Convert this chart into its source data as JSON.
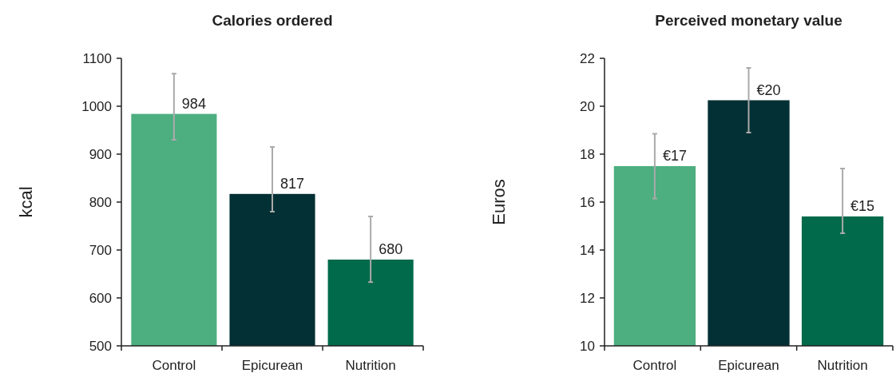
{
  "chart_data": [
    {
      "type": "bar",
      "title": "Calories ordered",
      "ylabel": "kcal",
      "categories": [
        "Control",
        "Epicurean",
        "Nutrition"
      ],
      "values": [
        984,
        817,
        680
      ],
      "colors": [
        "#4dae80",
        "#033034",
        "#006a4a"
      ],
      "errors": [
        [
          930,
          1068
        ],
        [
          780,
          915
        ],
        [
          633,
          770
        ]
      ],
      "value_labels": [
        "984",
        "817",
        "680"
      ],
      "ylim": [
        500,
        1100
      ],
      "yticks": [
        500,
        600,
        700,
        800,
        900,
        1000,
        1100
      ],
      "grid": false
    },
    {
      "type": "bar",
      "title": "Perceived monetary value",
      "ylabel": "Euros",
      "categories": [
        "Control",
        "Epicurean",
        "Nutrition"
      ],
      "values": [
        17.5,
        20.25,
        15.4
      ],
      "colors": [
        "#4dae80",
        "#033034",
        "#006a4a"
      ],
      "errors": [
        [
          16.15,
          18.85
        ],
        [
          18.9,
          21.6
        ],
        [
          14.7,
          17.4
        ]
      ],
      "value_labels": [
        "€17",
        "€20",
        "€15"
      ],
      "ylim": [
        10,
        22
      ],
      "yticks": [
        10,
        12,
        14,
        16,
        18,
        20,
        22
      ],
      "grid": false
    }
  ]
}
